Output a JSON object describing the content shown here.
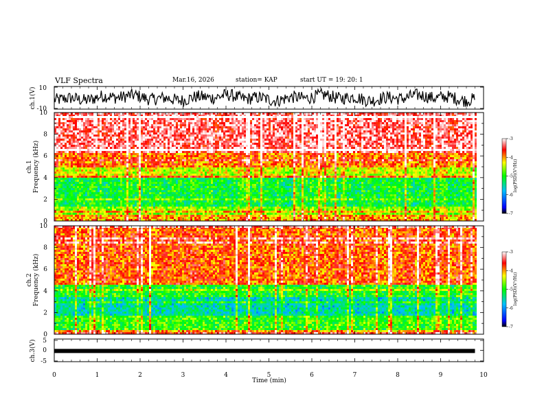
{
  "header": {
    "title": "VLF Spectra",
    "date": "Mar.16, 2026",
    "station": "station= KAP",
    "start_ut": "start  UT =   19: 20: 1"
  },
  "chart_data": [
    {
      "type": "line",
      "panel": "ch1-waveform",
      "ylabel": "ch.1(V)",
      "ylim": [
        -10,
        10
      ],
      "y_tick_labels": [
        "10",
        "-10"
      ],
      "description_series": "noisy waveform oscillating between about -10 and 10 V",
      "x_range_min": [
        0,
        9.8
      ]
    },
    {
      "type": "heatmap",
      "panel": "ch1-spectrogram",
      "ylabel_line1": "ch.1",
      "ylabel_line2": "Frequency  (kHz)",
      "ylim": [
        0,
        10
      ],
      "y_tick_labels": [
        "0",
        "2",
        "4",
        "6",
        "8",
        "10"
      ],
      "colorbar_label": "log(PSD)(V²/Hz)",
      "colorbar_ticks": [
        "-3",
        "-4",
        "-5",
        "-6",
        "-7"
      ],
      "colorbar_range": [
        -7,
        -3
      ],
      "bands_khz": [
        {
          "from": 0,
          "to": 0.3,
          "level": -4.0
        },
        {
          "from": 0.3,
          "to": 1.4,
          "level": -4.6
        },
        {
          "from": 1.4,
          "to": 4.0,
          "level": -5.1
        },
        {
          "from": 4.0,
          "to": 5.0,
          "level": -4.4
        },
        {
          "from": 5.0,
          "to": 6.5,
          "level": -3.9
        },
        {
          "from": 6.5,
          "to": 10,
          "level": -3.3
        }
      ]
    },
    {
      "type": "heatmap",
      "panel": "ch2-spectrogram",
      "ylabel_line1": "ch.2",
      "ylabel_line2": "Frequency  (kHz)",
      "ylim": [
        0,
        10
      ],
      "y_tick_labels": [
        "0",
        "2",
        "4",
        "6",
        "8",
        "10"
      ],
      "colorbar_label": "log(PSD)(V²/Hz)",
      "colorbar_ticks": [
        "-3",
        "-4",
        "-5",
        "-6",
        "-7"
      ],
      "colorbar_range": [
        -7,
        -3
      ],
      "bands_khz": [
        {
          "from": 0,
          "to": 0.3,
          "level": -4.0
        },
        {
          "from": 0.3,
          "to": 1.8,
          "level": -4.9
        },
        {
          "from": 1.8,
          "to": 3.4,
          "level": -5.5
        },
        {
          "from": 3.4,
          "to": 4.6,
          "level": -5.0
        },
        {
          "from": 4.6,
          "to": 10,
          "level": -3.8
        }
      ]
    },
    {
      "type": "line",
      "panel": "ch3-waveform",
      "ylabel": "ch.3(V)",
      "ylim": [
        -5,
        5
      ],
      "y_tick_labels": [
        "5",
        "0",
        "-5"
      ],
      "constant_value": -0.3
    }
  ],
  "xaxis": {
    "label": "Time  (min)",
    "ticks": [
      "0",
      "1",
      "2",
      "3",
      "4",
      "5",
      "6",
      "7",
      "8",
      "9",
      "10"
    ],
    "range": [
      0,
      10
    ],
    "data_end": 9.8
  },
  "colors": {
    "high": "#ff0000",
    "mid": "#00ff00",
    "low": "#0000ff"
  }
}
